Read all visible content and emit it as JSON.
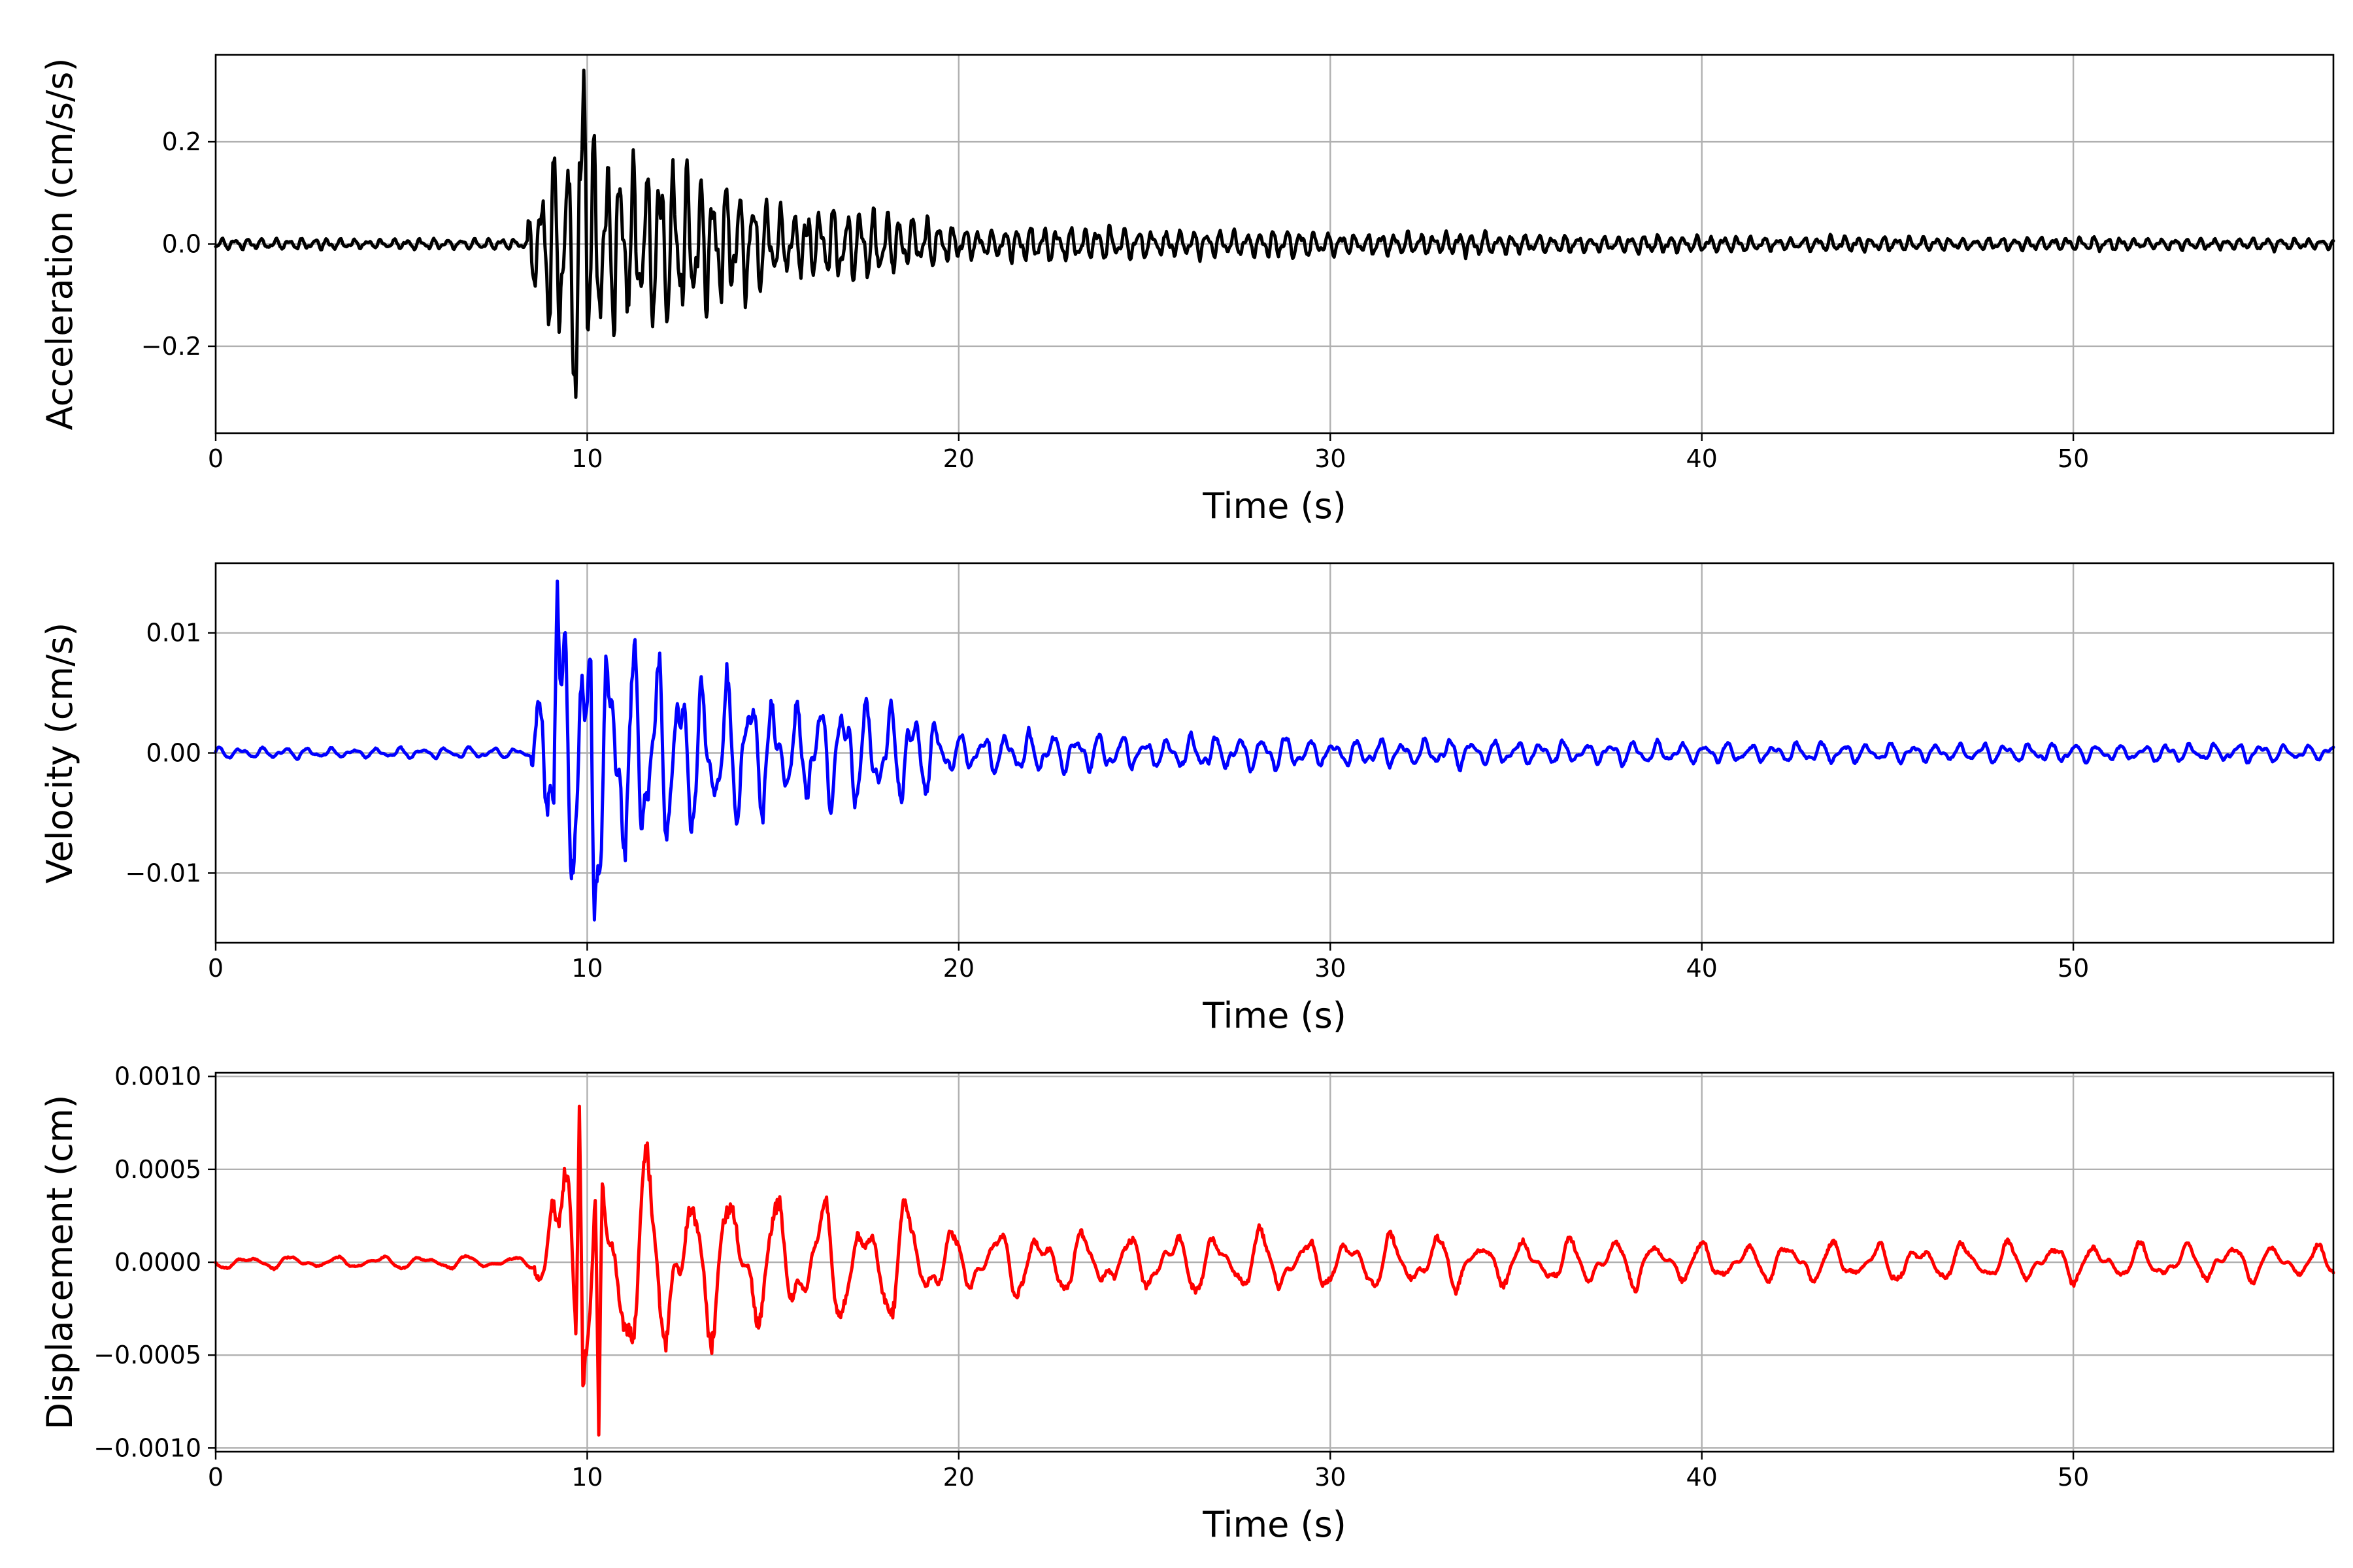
{
  "chart_data": [
    {
      "type": "line",
      "xlabel": "Time (s)",
      "ylabel": "Acceleration (cm/s/s)",
      "xlim": [
        0,
        57
      ],
      "ylim": [
        -0.37,
        0.37
      ],
      "xticks": [
        0,
        10,
        20,
        30,
        40,
        50
      ],
      "xtick_labels": [
        "0",
        "10",
        "20",
        "30",
        "40",
        "50"
      ],
      "yticks": [
        -0.2,
        0.0,
        0.2
      ],
      "ytick_labels": [
        "−0.2",
        "0.0",
        "0.2"
      ],
      "grid": true,
      "color": "#000000",
      "series": [
        {
          "t_start": 0,
          "t_end": 57,
          "onset": 8.4,
          "peak_positive": 0.34,
          "peak_positive_time": 9.9,
          "peak_negative": -0.3,
          "peak_negative_time": 9.7,
          "pre_event_noise_amplitude": 0.012,
          "envelope": [
            [
              8.4,
              0.06
            ],
            [
              9.0,
              0.26
            ],
            [
              10.5,
              0.24
            ],
            [
              12.0,
              0.17
            ],
            [
              13.7,
              0.16
            ],
            [
              15.0,
              0.09
            ],
            [
              17.5,
              0.08
            ],
            [
              20.0,
              0.04
            ],
            [
              30.0,
              0.028
            ],
            [
              40.0,
              0.018
            ],
            [
              57.0,
              0.012
            ]
          ]
        }
      ]
    },
    {
      "type": "line",
      "xlabel": "Time (s)",
      "ylabel": "Velocity (cm/s)",
      "xlim": [
        0,
        57
      ],
      "ylim": [
        -0.0158,
        0.0158
      ],
      "xticks": [
        0,
        10,
        20,
        30,
        40,
        50
      ],
      "xtick_labels": [
        "0",
        "10",
        "20",
        "30",
        "40",
        "50"
      ],
      "yticks": [
        -0.01,
        0.0,
        0.01
      ],
      "ytick_labels": [
        "−0.01",
        "0.00",
        "0.01"
      ],
      "grid": true,
      "color": "#0000ff",
      "series": [
        {
          "t_start": 0,
          "t_end": 57,
          "onset": 8.5,
          "peak_positive": 0.0143,
          "peak_positive_time": 9.2,
          "peak_negative": -0.0139,
          "peak_negative_time": 10.2,
          "pre_event_noise_amplitude": 0.0005,
          "envelope": [
            [
              8.5,
              0.002
            ],
            [
              9.0,
              0.013
            ],
            [
              10.3,
              0.013
            ],
            [
              12.0,
              0.008
            ],
            [
              13.7,
              0.008
            ],
            [
              15.5,
              0.005
            ],
            [
              18.7,
              0.005
            ],
            [
              20.0,
              0.002
            ],
            [
              30.0,
              0.0014
            ],
            [
              40.0,
              0.001
            ],
            [
              57.0,
              0.0008
            ]
          ]
        }
      ]
    },
    {
      "type": "line",
      "xlabel": "Time (s)",
      "ylabel": "Displacement (cm)",
      "xlim": [
        0,
        57
      ],
      "ylim": [
        -0.00102,
        0.00102
      ],
      "xticks": [
        0,
        10,
        20,
        30,
        40,
        50
      ],
      "xtick_labels": [
        "0",
        "10",
        "20",
        "30",
        "40",
        "50"
      ],
      "yticks": [
        -0.001,
        -0.0005,
        0.0,
        0.0005,
        0.001
      ],
      "ytick_labels": [
        "−0.0010",
        "−0.0005",
        "0.0000",
        "0.0005",
        "0.0010"
      ],
      "grid": true,
      "color": "#ff0000",
      "series": [
        {
          "t_start": 0,
          "t_end": 57,
          "onset": 8.6,
          "peak_positive": 0.00084,
          "peak_positive_time": 9.8,
          "peak_negative": -0.00093,
          "peak_negative_time": 10.3,
          "pre_event_noise_amplitude": 4e-05,
          "envelope": [
            [
              8.6,
              0.0001
            ],
            [
              9.1,
              0.0008
            ],
            [
              10.3,
              0.0008
            ],
            [
              11.5,
              0.0006
            ],
            [
              14.0,
              0.0005
            ],
            [
              16.0,
              0.00035
            ],
            [
              18.5,
              0.0004
            ],
            [
              20.0,
              0.0002
            ],
            [
              30.0,
              0.00018
            ],
            [
              40.0,
              0.00013
            ],
            [
              57.0,
              0.00011
            ]
          ]
        }
      ]
    }
  ]
}
